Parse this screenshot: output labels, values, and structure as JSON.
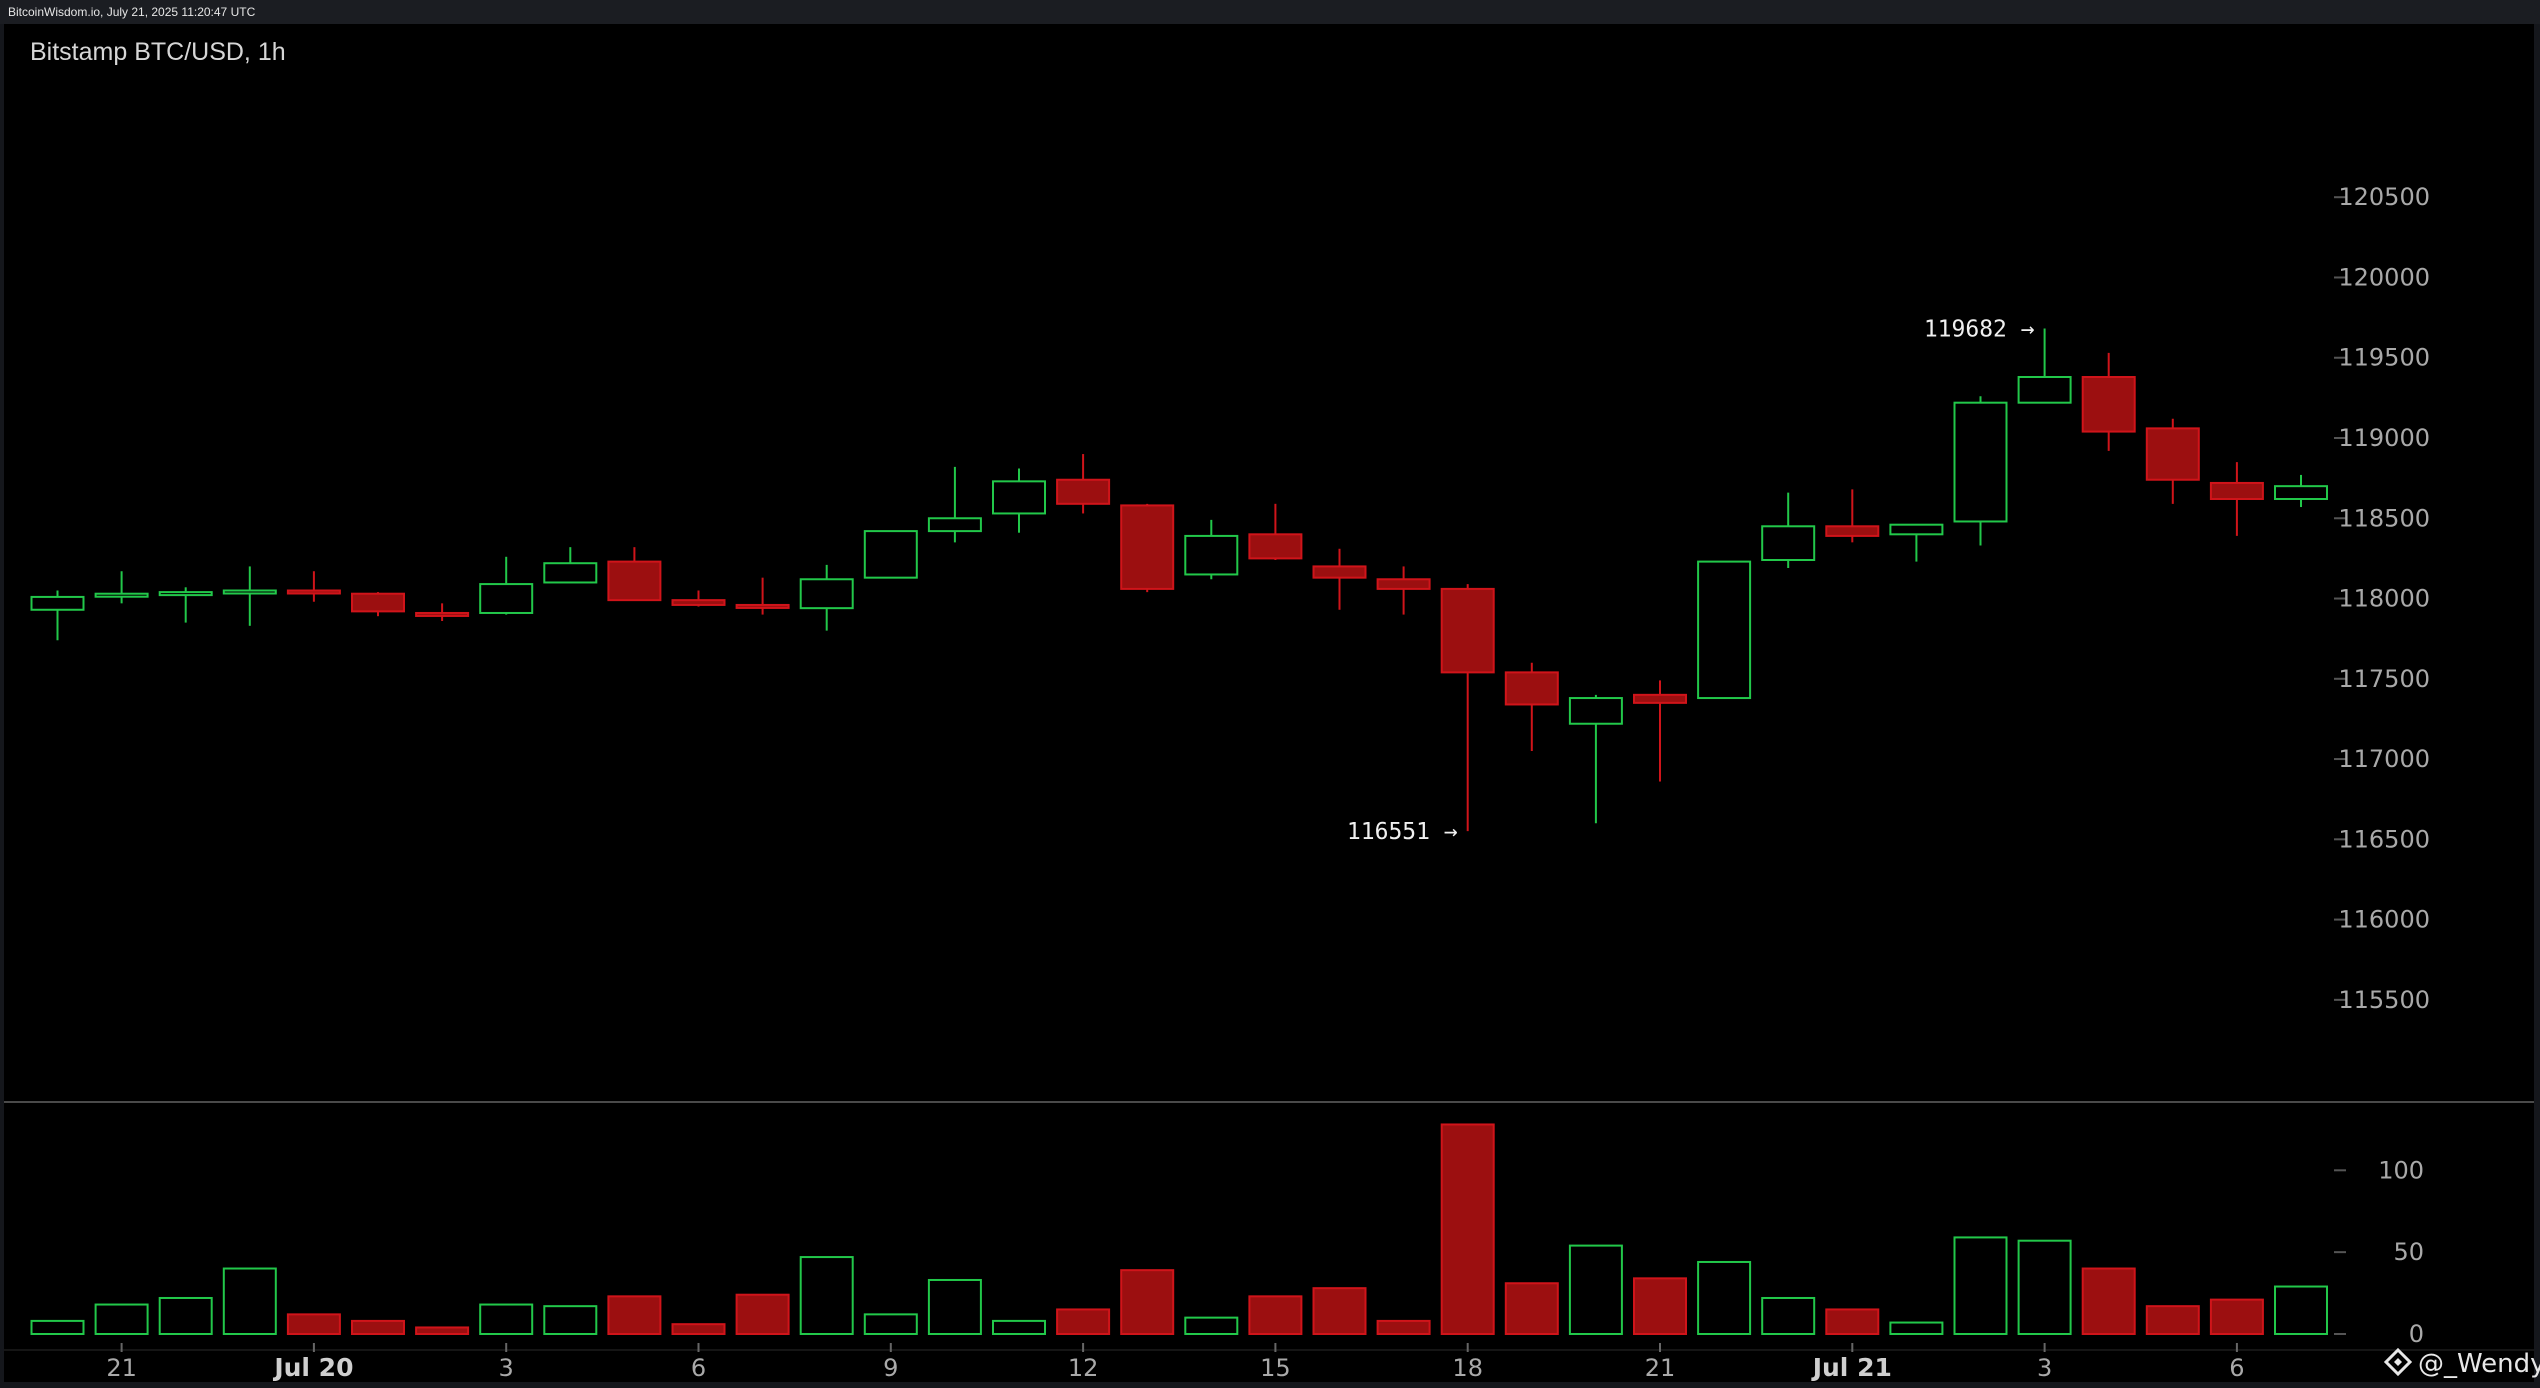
{
  "header": {
    "source": "BitcoinWisdom.io, July 21, 2025 11:20:47 UTC"
  },
  "watermark": {
    "text": "@_Wendy",
    "icon": "diamond-logo-icon"
  },
  "colors": {
    "up": "#22c84a",
    "down": "#d0141a",
    "down_fill": "#9c0f10",
    "background": "#000000",
    "axis_text": "#a9a9a9"
  },
  "chart_data": [
    {
      "type": "candlestick",
      "title": "Bitstamp BTC/USD, 1h",
      "ylim": [
        115200,
        120900
      ],
      "y_ticks": [
        120500,
        120000,
        119500,
        119000,
        118500,
        118000,
        117500,
        117000,
        116500,
        116000,
        115500
      ],
      "x_ticks": [
        {
          "label": "21",
          "index": 1,
          "bold": false
        },
        {
          "label": "Jul 20",
          "index": 4,
          "bold": true
        },
        {
          "label": "3",
          "index": 7,
          "bold": false
        },
        {
          "label": "6",
          "index": 10,
          "bold": false
        },
        {
          "label": "9",
          "index": 13,
          "bold": false
        },
        {
          "label": "12",
          "index": 16,
          "bold": false
        },
        {
          "label": "15",
          "index": 19,
          "bold": false
        },
        {
          "label": "18",
          "index": 22,
          "bold": false
        },
        {
          "label": "21",
          "index": 25,
          "bold": false
        },
        {
          "label": "Jul 21",
          "index": 28,
          "bold": true
        },
        {
          "label": "3",
          "index": 31,
          "bold": false
        },
        {
          "label": "6",
          "index": 34,
          "bold": false
        }
      ],
      "annotations": [
        {
          "text": "119682 →",
          "index": 31,
          "value": 119682,
          "position": "left"
        },
        {
          "text": "116551 →",
          "index": 22,
          "value": 116551,
          "position": "left"
        }
      ],
      "candles": [
        {
          "o": 117930,
          "h": 118050,
          "l": 117740,
          "c": 118010
        },
        {
          "o": 118020,
          "h": 118170,
          "l": 117970,
          "c": 118030
        },
        {
          "o": 118030,
          "h": 118070,
          "l": 117850,
          "c": 118040
        },
        {
          "o": 118040,
          "h": 118200,
          "l": 117830,
          "c": 118050
        },
        {
          "o": 118050,
          "h": 118170,
          "l": 117980,
          "c": 118040
        },
        {
          "o": 118030,
          "h": 118040,
          "l": 117890,
          "c": 117920
        },
        {
          "o": 117910,
          "h": 117970,
          "l": 117860,
          "c": 117900
        },
        {
          "o": 117910,
          "h": 118260,
          "l": 117900,
          "c": 118090
        },
        {
          "o": 118100,
          "h": 118320,
          "l": 118100,
          "c": 118220
        },
        {
          "o": 118230,
          "h": 118320,
          "l": 117990,
          "c": 117990
        },
        {
          "o": 117990,
          "h": 118050,
          "l": 117950,
          "c": 117960
        },
        {
          "o": 117960,
          "h": 118130,
          "l": 117900,
          "c": 117950
        },
        {
          "o": 117940,
          "h": 118210,
          "l": 117800,
          "c": 118120
        },
        {
          "o": 118130,
          "h": 118420,
          "l": 118130,
          "c": 118420
        },
        {
          "o": 118420,
          "h": 118820,
          "l": 118350,
          "c": 118500
        },
        {
          "o": 118530,
          "h": 118810,
          "l": 118410,
          "c": 118730
        },
        {
          "o": 118740,
          "h": 118900,
          "l": 118530,
          "c": 118590
        },
        {
          "o": 118580,
          "h": 118590,
          "l": 118040,
          "c": 118060
        },
        {
          "o": 118150,
          "h": 118490,
          "l": 118120,
          "c": 118390
        },
        {
          "o": 118400,
          "h": 118590,
          "l": 118240,
          "c": 118250
        },
        {
          "o": 118200,
          "h": 118310,
          "l": 117930,
          "c": 118130
        },
        {
          "o": 118120,
          "h": 118200,
          "l": 117900,
          "c": 118060
        },
        {
          "o": 118060,
          "h": 118090,
          "l": 116551,
          "c": 117540
        },
        {
          "o": 117540,
          "h": 117600,
          "l": 117050,
          "c": 117340
        },
        {
          "o": 117220,
          "h": 117400,
          "l": 116600,
          "c": 117380
        },
        {
          "o": 117400,
          "h": 117490,
          "l": 116860,
          "c": 117350
        },
        {
          "o": 117380,
          "h": 118230,
          "l": 117380,
          "c": 118230
        },
        {
          "o": 118240,
          "h": 118660,
          "l": 118190,
          "c": 118450
        },
        {
          "o": 118450,
          "h": 118680,
          "l": 118350,
          "c": 118390
        },
        {
          "o": 118400,
          "h": 118460,
          "l": 118230,
          "c": 118460
        },
        {
          "o": 118480,
          "h": 119260,
          "l": 118330,
          "c": 119220
        },
        {
          "o": 119220,
          "h": 119682,
          "l": 119220,
          "c": 119380
        },
        {
          "o": 119380,
          "h": 119530,
          "l": 118920,
          "c": 119040
        },
        {
          "o": 119060,
          "h": 119120,
          "l": 118590,
          "c": 118740
        },
        {
          "o": 118720,
          "h": 118850,
          "l": 118390,
          "c": 118620
        },
        {
          "o": 118620,
          "h": 118770,
          "l": 118570,
          "c": 118700
        }
      ]
    },
    {
      "type": "bar",
      "name": "volume",
      "ylim": [
        0,
        135
      ],
      "y_ticks": [
        100,
        50,
        0
      ],
      "values": [
        8,
        18,
        22,
        40,
        12,
        8,
        4,
        18,
        17,
        23,
        6,
        24,
        47,
        12,
        33,
        8,
        15,
        39,
        10,
        23,
        28,
        8,
        128,
        31,
        54,
        34,
        44,
        22,
        15,
        7,
        59,
        57,
        40,
        17,
        21,
        29
      ]
    }
  ]
}
